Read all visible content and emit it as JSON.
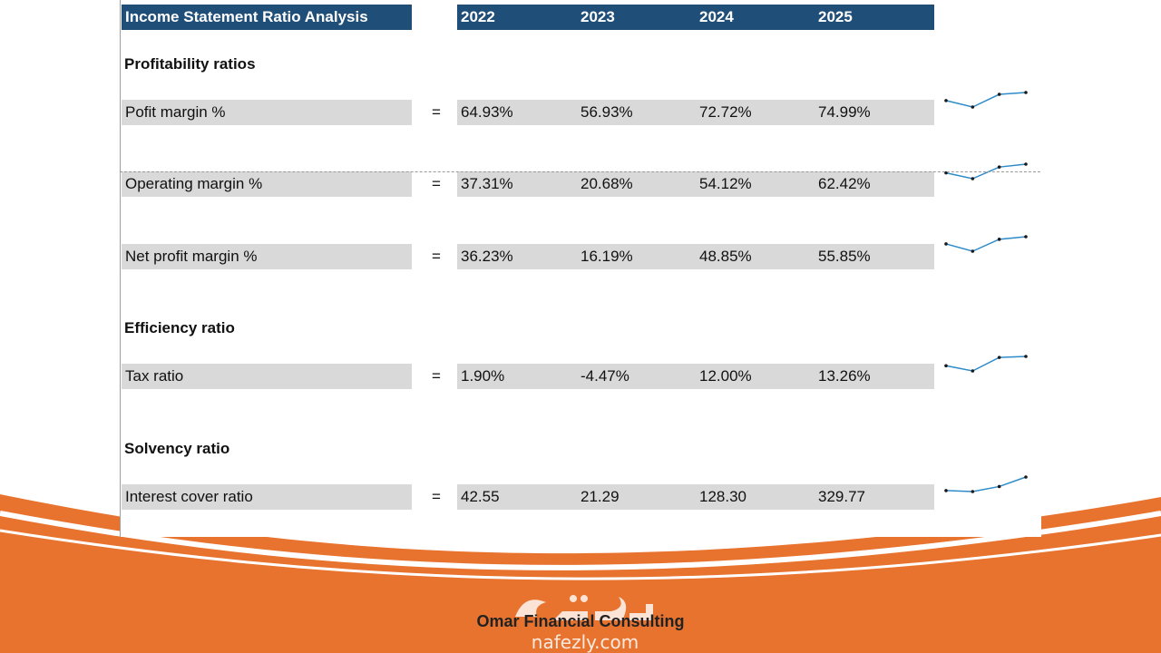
{
  "header": {
    "title": "Income Statement Ratio Analysis",
    "years": [
      "2022",
      "2023",
      "2024",
      "2025"
    ]
  },
  "sections": {
    "profitability": "Profitability ratios",
    "efficiency": "Efficiency ratio",
    "solvency": "Solvency ratio"
  },
  "equals": "=",
  "rows": [
    {
      "label": "Pofit margin %",
      "values": [
        "64.93%",
        "56.93%",
        "72.72%",
        "74.99%"
      ],
      "trend": [
        64.93,
        56.93,
        72.72,
        74.99
      ]
    },
    {
      "label": "Operating margin %",
      "values": [
        "37.31%",
        "20.68%",
        "54.12%",
        "62.42%"
      ],
      "trend": [
        37.31,
        20.68,
        54.12,
        62.42
      ]
    },
    {
      "label": "Net profit margin %",
      "values": [
        "36.23%",
        "16.19%",
        "48.85%",
        "55.85%"
      ],
      "trend": [
        36.23,
        16.19,
        48.85,
        55.85
      ]
    },
    {
      "label": "Tax ratio",
      "values": [
        "1.90%",
        "-4.47%",
        "12.00%",
        "13.26%"
      ],
      "trend": [
        1.9,
        -4.47,
        12.0,
        13.26
      ]
    },
    {
      "label": "Interest cover ratio",
      "values": [
        "42.55",
        "21.29",
        "128.30",
        "329.77"
      ],
      "trend": [
        42.55,
        21.29,
        128.3,
        329.77
      ]
    }
  ],
  "footer": {
    "brand": "Omar Financial Consulting",
    "watermark_url": "nafezly.com"
  },
  "colors": {
    "header_bg": "#1f4e79",
    "cell_bg": "#d9d9d9",
    "accent_orange": "#e8732f",
    "sparkline": "#2e8bc9"
  }
}
